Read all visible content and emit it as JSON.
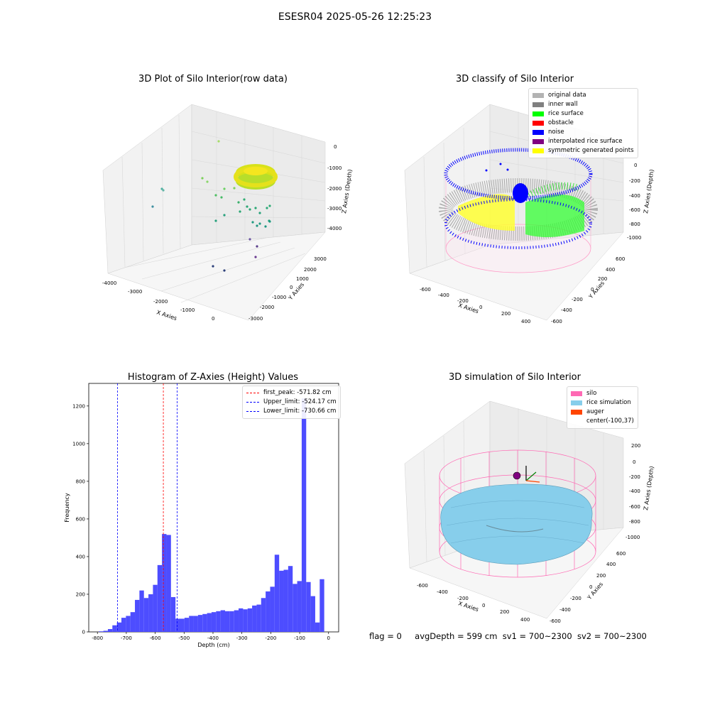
{
  "figure": {
    "suptitle": "ESESR04 2025-05-26 12:25:23",
    "footer": {
      "flag": "flag = 0",
      "avg_depth": "avgDepth = 599 cm",
      "sv1": "sv1 = 700~2300",
      "sv2": "sv2 = 700~2300"
    }
  },
  "colors": {
    "silo": "#ff69b4",
    "rice": "#87ceeb",
    "auger": "#ff4500",
    "hist_bar": "#4d4dff",
    "noise": "#0000ff",
    "rice_surface": "#00ff00"
  },
  "chart_data": [
    {
      "type": "scatter3d",
      "title": "3D Plot of Silo Interior(row data)",
      "xlabel": "X Axies",
      "ylabel": "Y Axies",
      "zlabel": "Z Axies (Depth)",
      "x_ticks": [
        "-4000",
        "-3000",
        "-2000",
        "-1000",
        "0"
      ],
      "y_ticks": [
        "3000",
        "2000",
        "1000",
        "0",
        "-1000",
        "-2000",
        "-3000"
      ],
      "z_ticks": [
        "0",
        "-1000",
        "-2000",
        "-3000",
        "-4000"
      ]
    },
    {
      "type": "scatter3d",
      "title": "3D classify of Silo Interior",
      "xlabel": "X Axies",
      "ylabel": "Y Axies",
      "zlabel": "Z Axies (Depth)",
      "x_ticks": [
        "-600",
        "-400",
        "-200",
        "0",
        "200",
        "400"
      ],
      "y_ticks": [
        "600",
        "400",
        "200",
        "0",
        "-200",
        "-400",
        "-600"
      ],
      "z_ticks": [
        "0",
        "-200",
        "-400",
        "-600",
        "-800",
        "-1000"
      ],
      "legend": [
        {
          "label": "original data",
          "color": "#b3b3b3"
        },
        {
          "label": "inner wall",
          "color": "#808080"
        },
        {
          "label": "rice surface",
          "color": "#00ff00"
        },
        {
          "label": "obstacle",
          "color": "#ff0000"
        },
        {
          "label": "noise",
          "color": "#0000ff"
        },
        {
          "label": "interpolated rice surface",
          "color": "#800080"
        },
        {
          "label": "symmetric generated points",
          "color": "#ffff00"
        }
      ]
    },
    {
      "type": "bar",
      "title": "Histogram of Z-Axies (Height) Values",
      "xlabel": "Depth (cm)",
      "ylabel": "Frequency",
      "xlim": [
        -830,
        35
      ],
      "ylim": [
        0,
        1320
      ],
      "x_ticks": [
        -800,
        -700,
        -600,
        -500,
        -400,
        -300,
        -200,
        -100,
        0
      ],
      "y_ticks": [
        0,
        200,
        400,
        600,
        800,
        1000,
        1200
      ],
      "bin_start": -795,
      "bin_width": 15.6,
      "values": [
        3,
        6,
        15,
        35,
        50,
        75,
        85,
        105,
        170,
        220,
        180,
        200,
        250,
        355,
        520,
        515,
        185,
        70,
        70,
        75,
        85,
        85,
        90,
        95,
        100,
        105,
        110,
        115,
        110,
        110,
        115,
        125,
        120,
        125,
        140,
        145,
        180,
        215,
        240,
        410,
        325,
        330,
        350,
        255,
        270,
        1240,
        265,
        190,
        50,
        280
      ],
      "vlines": [
        {
          "label": "first_peak: -571.82 cm",
          "x": -571.82,
          "color": "#ff0000"
        },
        {
          "label": "Upper_limit: -524.17 cm",
          "x": -524.17,
          "color": "#0000ff"
        },
        {
          "label": "Lower_limit: -730.66 cm",
          "x": -730.66,
          "color": "#0000ff"
        }
      ]
    },
    {
      "type": "surface3d",
      "title": "3D simulation of Silo Interior",
      "xlabel": "X Axies",
      "ylabel": "Y Axies",
      "zlabel": "Z Axies (Depth)",
      "x_ticks": [
        "-600",
        "-400",
        "-200",
        "0",
        "200",
        "400"
      ],
      "y_ticks": [
        "600",
        "400",
        "200",
        "0",
        "-200",
        "-400",
        "-600"
      ],
      "z_ticks": [
        "200",
        "0",
        "-200",
        "-400",
        "-600",
        "-800",
        "-1000"
      ],
      "legend": [
        {
          "label": "silo",
          "color": "#ff69b4"
        },
        {
          "label": "rice simulation",
          "color": "#87ceeb"
        },
        {
          "label": "auger",
          "color": "#ff4500"
        },
        {
          "label": "center(-100,37)",
          "color": ""
        }
      ]
    }
  ]
}
